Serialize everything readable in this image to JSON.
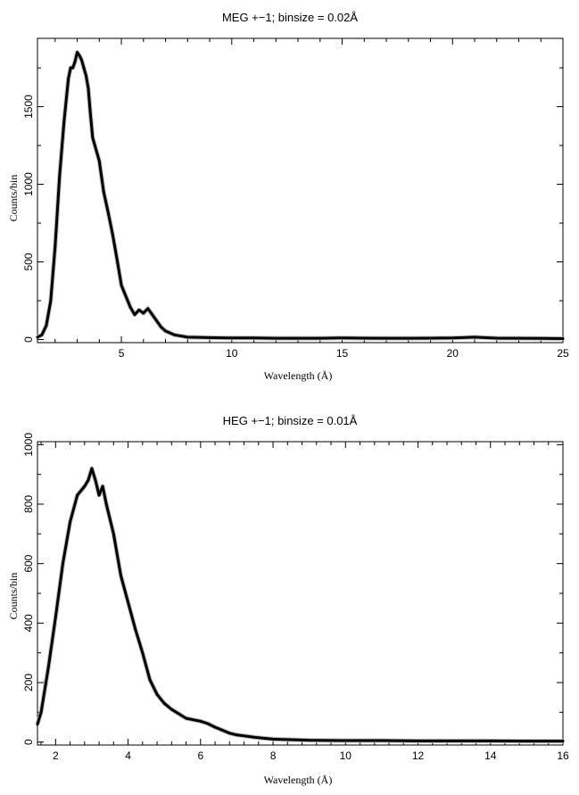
{
  "chart_data": [
    {
      "type": "line",
      "title": "MEG +−1; binsize = 0.02Å",
      "xlabel": "Wavelength (Å)",
      "ylabel": "Counts/bin",
      "xlim": [
        1.2,
        25
      ],
      "ylim": [
        -20,
        1940
      ],
      "xticks": [
        5,
        10,
        15,
        20,
        25
      ],
      "yticks": [
        0,
        500,
        1000,
        1500
      ],
      "grid": false,
      "legend": "none",
      "series": [
        {
          "color": "#000000",
          "x": [
            1.2,
            1.4,
            1.6,
            1.8,
            2.0,
            2.2,
            2.4,
            2.6,
            2.7,
            2.8,
            2.9,
            3.0,
            3.1,
            3.2,
            3.3,
            3.4,
            3.5,
            3.6,
            3.7,
            3.8,
            3.9,
            4.0,
            4.1,
            4.2,
            4.4,
            4.6,
            4.8,
            5.0,
            5.2,
            5.4,
            5.6,
            5.8,
            6.0,
            6.2,
            6.4,
            6.6,
            6.8,
            7.0,
            7.4,
            8.0,
            9.0,
            10,
            11,
            12,
            13,
            14,
            15,
            16,
            17,
            18,
            19,
            20,
            21,
            22,
            23,
            24,
            25
          ],
          "y": [
            15,
            30,
            90,
            250,
            600,
            1050,
            1400,
            1680,
            1750,
            1750,
            1790,
            1850,
            1830,
            1800,
            1750,
            1700,
            1620,
            1450,
            1300,
            1250,
            1200,
            1150,
            1050,
            950,
            820,
            680,
            520,
            350,
            280,
            210,
            160,
            190,
            170,
            200,
            160,
            120,
            80,
            55,
            30,
            15,
            12,
            10,
            10,
            8,
            8,
            8,
            10,
            9,
            8,
            8,
            9,
            10,
            15,
            9,
            8,
            7,
            6
          ]
        }
      ]
    },
    {
      "type": "line",
      "title": "HEG +−1; binsize = 0.01Å",
      "xlabel": "Wavelength (Å)",
      "ylabel": "Counts/bin",
      "xlim": [
        1.5,
        16
      ],
      "ylim": [
        -10,
        1010
      ],
      "xticks": [
        2,
        4,
        6,
        8,
        10,
        12,
        14,
        16
      ],
      "yticks": [
        0,
        200,
        400,
        600,
        800,
        1000
      ],
      "grid": false,
      "legend": "none",
      "series": [
        {
          "color": "#000000",
          "x": [
            1.5,
            1.6,
            1.8,
            2.0,
            2.2,
            2.4,
            2.6,
            2.8,
            2.9,
            3.0,
            3.1,
            3.2,
            3.3,
            3.4,
            3.6,
            3.8,
            4.0,
            4.2,
            4.4,
            4.6,
            4.8,
            5.0,
            5.2,
            5.4,
            5.6,
            5.8,
            6.0,
            6.2,
            6.4,
            6.6,
            6.8,
            7.0,
            7.5,
            8.0,
            8.5,
            9,
            10,
            11,
            12,
            13,
            14,
            15,
            16
          ],
          "y": [
            60,
            100,
            250,
            420,
            600,
            740,
            830,
            860,
            880,
            920,
            880,
            830,
            860,
            800,
            700,
            560,
            470,
            380,
            300,
            210,
            160,
            130,
            110,
            95,
            80,
            75,
            70,
            62,
            50,
            40,
            30,
            24,
            16,
            10,
            8,
            6,
            5,
            5,
            4,
            4,
            4,
            3,
            3
          ]
        }
      ]
    }
  ]
}
